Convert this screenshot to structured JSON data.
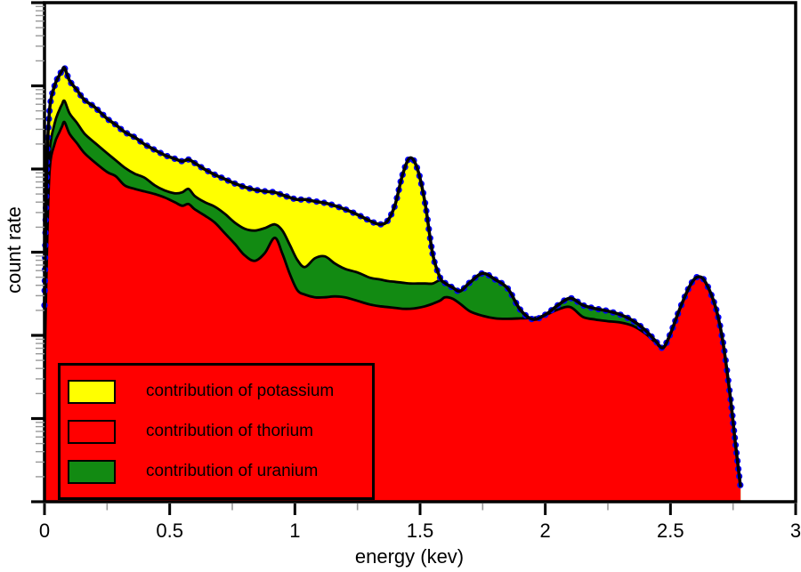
{
  "figure": {
    "background": "#ffffff"
  },
  "chart_data": {
    "type": "area",
    "subtype": "stacked gamma-ray spectrum on logarithmic y axis",
    "title": "",
    "xlabel": "energy (kev)",
    "ylabel": "count rate",
    "x_axis": {
      "min": 0,
      "max": 3,
      "major_ticks": [
        0,
        0.5,
        1,
        1.5,
        2,
        2.5,
        3
      ],
      "major_tick_labels": [
        "0",
        "0.5",
        "1",
        "1.5",
        "2",
        "2.5",
        "3"
      ],
      "minor_ticks": [
        0.25,
        0.75,
        1.25,
        1.75,
        2.25,
        2.75
      ]
    },
    "y_axis": {
      "scale": "log",
      "decades": 6,
      "min": 1,
      "max": 1000000,
      "tick_labels_visible": false,
      "note": "axis shows log major/minor ticks but no numeric labels; values below are estimates in arbitrary units"
    },
    "grid": false,
    "legend": {
      "position": "lower-left",
      "items": [
        {
          "label": "contribution of potassium",
          "color": "#ffff00"
        },
        {
          "label": "contribution of thorium",
          "color": "#ff0000"
        },
        {
          "label": "contribution of uranium",
          "color": "#128a12"
        }
      ]
    },
    "stacking_note": "curves are cumulative stacked tops: thorium (red fill), thorium+uranium (green band top), total incl. potassium (black curve with blue data dots); yellow band = potassium contribution",
    "x": [
      0,
      0.008,
      0.02,
      0.04,
      0.06,
      0.07,
      0.08,
      0.1,
      0.13,
      0.16,
      0.2,
      0.25,
      0.285,
      0.32,
      0.36,
      0.4,
      0.44,
      0.48,
      0.52,
      0.55,
      0.575,
      0.6,
      0.64,
      0.68,
      0.72,
      0.76,
      0.8,
      0.84,
      0.88,
      0.92,
      0.95,
      0.98,
      1.01,
      1.04,
      1.08,
      1.12,
      1.16,
      1.2,
      1.25,
      1.3,
      1.34,
      1.37,
      1.4,
      1.43,
      1.46,
      1.49,
      1.52,
      1.55,
      1.58,
      1.6,
      1.63,
      1.66,
      1.7,
      1.75,
      1.8,
      1.85,
      1.9,
      1.95,
      2.0,
      2.05,
      2.1,
      2.15,
      2.2,
      2.25,
      2.3,
      2.35,
      2.4,
      2.44,
      2.47,
      2.5,
      2.54,
      2.58,
      2.61,
      2.64,
      2.68,
      2.71,
      2.74,
      2.76,
      2.78
    ],
    "series": [
      {
        "name": "total spectrum (data points)",
        "style": "thick black line with blue dots",
        "values": [
          230,
          8000,
          50000,
          100000,
          135000,
          152000,
          164000,
          116000,
          88700,
          67600,
          55600,
          40400,
          34000,
          27900,
          24100,
          19800,
          17000,
          14700,
          13300,
          12400,
          13000,
          11800,
          9900,
          8550,
          7570,
          6690,
          6070,
          5640,
          5400,
          5240,
          4870,
          4550,
          4300,
          4300,
          4090,
          3900,
          3620,
          3280,
          2830,
          2380,
          2160,
          2380,
          3710,
          8550,
          13600,
          9900,
          3900,
          960,
          493,
          425,
          376,
          341,
          436,
          557,
          470,
          366,
          204,
          156,
          177,
          230,
          280,
          231,
          210,
          196,
          177,
          150,
          115,
          86,
          71,
          105,
          219,
          406,
          506,
          436,
          219,
          82,
          17,
          4.8,
          1.5
        ]
      },
      {
        "name": "thorium + uranium (top of green uranium band)",
        "values": [
          57,
          1500,
          15000,
          35000,
          52000,
          60000,
          66000,
          46800,
          35700,
          26600,
          20800,
          15500,
          12700,
          10400,
          8780,
          7850,
          6370,
          5530,
          5110,
          5240,
          5770,
          4740,
          3990,
          3530,
          2900,
          2270,
          1910,
          1820,
          1950,
          2160,
          1820,
          1220,
          807,
          662,
          846,
          891,
          731,
          631,
          571,
          493,
          471,
          450,
          440,
          430,
          420,
          420,
          420,
          420,
          460,
          425,
          376,
          341,
          436,
          557,
          470,
          366,
          204,
          156,
          177,
          230,
          280,
          231,
          210,
          196,
          177,
          150,
          115,
          86,
          71,
          105,
          219,
          406,
          506,
          436,
          219,
          82,
          17,
          4.8,
          1.5
        ]
      },
      {
        "name": "thorium (top of red band)",
        "values": [
          27,
          600,
          9000,
          20000,
          28000,
          32500,
          36600,
          26600,
          20300,
          15500,
          12100,
          9220,
          8170,
          6370,
          5770,
          5370,
          5000,
          4550,
          3990,
          3620,
          3800,
          3280,
          2760,
          2270,
          1690,
          1260,
          912,
          787,
          979,
          1490,
          958,
          545,
          349,
          309,
          287,
          287,
          294,
          287,
          260,
          235,
          224,
          219,
          214,
          209,
          209,
          214,
          224,
          240,
          262,
          287,
          276,
          240,
          194,
          172,
          160,
          158,
          160,
          162,
          175,
          204,
          219,
          167,
          155,
          148,
          143,
          130,
          105,
          82,
          71,
          105,
          219,
          406,
          506,
          436,
          219,
          82,
          17,
          4.8,
          1.5
        ]
      }
    ],
    "annotations": {
      "potassium_peak_kev": 1.46,
      "thorium_peak_kev": 2.61,
      "spectrum_end_kev": 2.78
    },
    "colors": {
      "potassium_fill": "#ffff00",
      "thorium_fill": "#ff0000",
      "uranium_fill": "#128a12",
      "data_dots": "#0000ff",
      "curves": "#000000",
      "frame": "#000000",
      "minor_tick": "#999999",
      "background": "#ffffff"
    }
  }
}
